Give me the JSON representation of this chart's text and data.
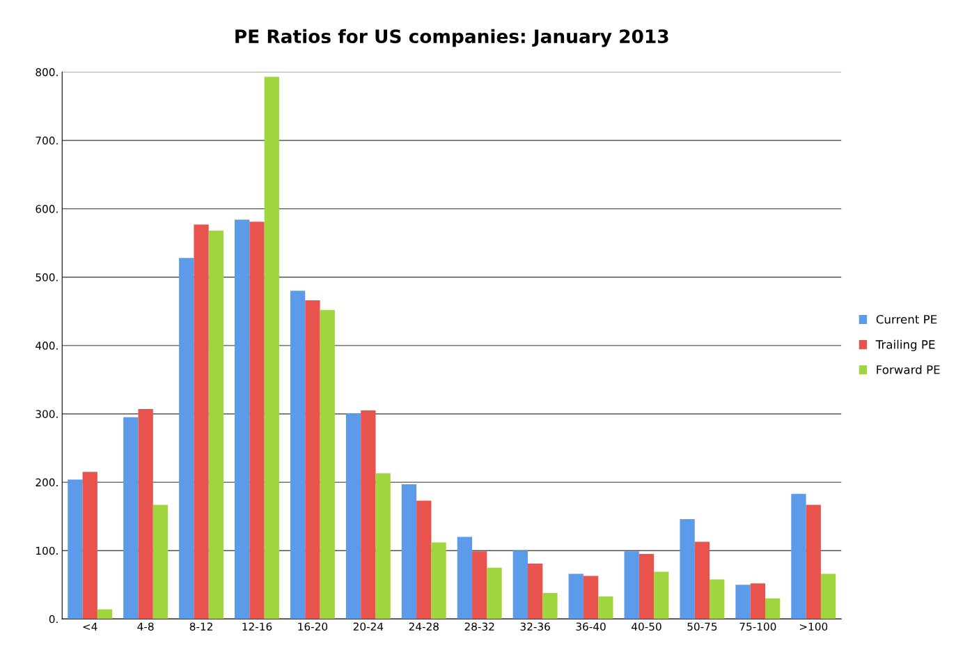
{
  "chart_data": {
    "type": "bar",
    "title": "PE Ratios for US companies: January 2013",
    "categories": [
      "<4",
      "4-8",
      "8-12",
      "12-16",
      "16-20",
      "20-24",
      "24-28",
      "28-32",
      "32-36",
      "36-40",
      "40-50",
      "50-75",
      "75-100",
      ">100"
    ],
    "series": [
      {
        "name": "Current PE",
        "color": "#5b9bea",
        "values": [
          204,
          295,
          528,
          584,
          480,
          301,
          197,
          120,
          100,
          66,
          99,
          146,
          50,
          183
        ]
      },
      {
        "name": "Trailing PE",
        "color": "#e8534e",
        "values": [
          215,
          307,
          577,
          581,
          466,
          305,
          173,
          99,
          81,
          63,
          95,
          113,
          52,
          167
        ]
      },
      {
        "name": "Forward PE",
        "color": "#9fd640",
        "values": [
          14,
          167,
          568,
          793,
          452,
          213,
          112,
          75,
          38,
          33,
          69,
          58,
          30,
          66
        ]
      }
    ],
    "ylim": [
      0,
      800
    ],
    "yticks": [
      {
        "value": 0,
        "label": "0."
      },
      {
        "value": 100,
        "label": "100."
      },
      {
        "value": 200,
        "label": "200."
      },
      {
        "value": 300,
        "label": "300."
      },
      {
        "value": 400,
        "label": "400."
      },
      {
        "value": 500,
        "label": "500."
      },
      {
        "value": 600,
        "label": "600."
      },
      {
        "value": 700,
        "label": "700."
      },
      {
        "value": 800,
        "label": "800."
      }
    ],
    "grid": "y",
    "legend": "right"
  }
}
